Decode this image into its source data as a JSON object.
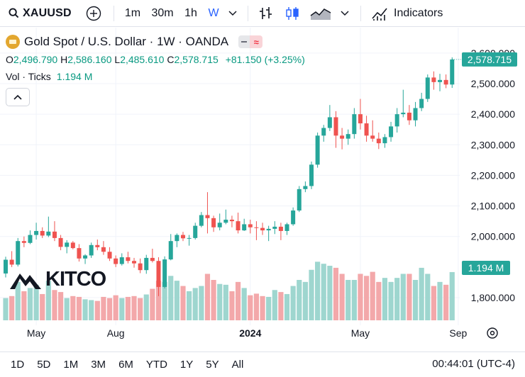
{
  "toolbar": {
    "symbol": "XAUUSD",
    "intervals": [
      "1m",
      "30m",
      "1h",
      "W"
    ],
    "active_interval": "W",
    "indicators_label": "Indicators",
    "icons": [
      "search-icon",
      "add-compare-icon",
      "chevron-down-icon",
      "bar-style-icon",
      "candle-style-icon",
      "area-style-icon",
      "indicators-icon"
    ]
  },
  "legend": {
    "title": "Gold Spot / U.S. Dollar · 1W · OANDA",
    "o_label": "O",
    "open": "2,496.790",
    "h_label": "H",
    "high": "2,586.160",
    "l_label": "L",
    "low": "2,485.610",
    "c_label": "C",
    "close": "2,578.715",
    "change": "+81.150 (+3.25%)",
    "vol_label": "Vol · Ticks",
    "vol_value": "1.194 M"
  },
  "watermark": "KITCO",
  "bottom": {
    "ranges": [
      "1D",
      "5D",
      "1M",
      "3M",
      "6M",
      "YTD",
      "1Y",
      "5Y",
      "All"
    ],
    "clock": "00:44:01 (UTC-4)"
  },
  "colors": {
    "up": "#26a69a",
    "down": "#ef5350",
    "vol_up": "#9ed6cf",
    "vol_down": "#f3a8aa",
    "badge": "#26a69a",
    "accent": "#2962ff"
  },
  "chart_data": {
    "type": "candlestick",
    "title": "Gold Spot / U.S. Dollar · 1W · OANDA",
    "y_ticks": [
      "2,600.000",
      "2,500.000",
      "2,400.000",
      "2,300.000",
      "2,200.000",
      "2,100.000",
      "2,000.000",
      "1,800.000"
    ],
    "y_tick_values": [
      2600,
      2500,
      2400,
      2300,
      2200,
      2100,
      2000,
      1800
    ],
    "ylim": [
      1755,
      2620
    ],
    "x_ticks": [
      {
        "label": "May",
        "index": 5
      },
      {
        "label": "Aug",
        "index": 18
      },
      {
        "label": "2024",
        "index": 40
      },
      {
        "label": "May",
        "index": 58
      },
      {
        "label": "Sep",
        "index": 74
      }
    ],
    "last_price_label": "2,578.715",
    "volume_label": "1.194 M",
    "volume_range": [
      0,
      1.7
    ],
    "candles": [
      [
        1879,
        1934,
        1866,
        1924,
        0.55
      ],
      [
        1924,
        1952,
        1900,
        1908,
        0.6
      ],
      [
        1908,
        1995,
        1902,
        1985,
        0.95
      ],
      [
        1985,
        2000,
        1965,
        1979,
        0.72
      ],
      [
        1979,
        2020,
        1975,
        2005,
        0.8
      ],
      [
        2005,
        2045,
        1990,
        2018,
        0.88
      ],
      [
        2018,
        2030,
        1995,
        2003,
        0.65
      ],
      [
        2003,
        2065,
        1998,
        2016,
        0.98
      ],
      [
        2016,
        2050,
        1985,
        1995,
        0.75
      ],
      [
        1995,
        2005,
        1955,
        1966,
        0.7
      ],
      [
        1966,
        1988,
        1945,
        1980,
        0.55
      ],
      [
        1980,
        1985,
        1958,
        1962,
        0.6
      ],
      [
        1962,
        1975,
        1918,
        1928,
        0.58
      ],
      [
        1928,
        1942,
        1910,
        1938,
        0.52
      ],
      [
        1938,
        1980,
        1930,
        1972,
        0.5
      ],
      [
        1972,
        1990,
        1955,
        1965,
        0.48
      ],
      [
        1965,
        1985,
        1940,
        1950,
        0.58
      ],
      [
        1950,
        1965,
        1920,
        1928,
        0.55
      ],
      [
        1928,
        1938,
        1900,
        1910,
        0.62
      ],
      [
        1910,
        1945,
        1905,
        1932,
        0.55
      ],
      [
        1932,
        1950,
        1912,
        1920,
        0.58
      ],
      [
        1920,
        1930,
        1898,
        1912,
        0.6
      ],
      [
        1912,
        1928,
        1880,
        1890,
        0.55
      ],
      [
        1890,
        1940,
        1878,
        1930,
        0.64
      ],
      [
        1930,
        1960,
        1915,
        1920,
        0.78
      ],
      [
        1920,
        1932,
        1805,
        1835,
        0.98
      ],
      [
        1835,
        1935,
        1830,
        1925,
        0.95
      ],
      [
        1925,
        2008,
        1922,
        1985,
        1.1
      ],
      [
        1985,
        2010,
        1965,
        2005,
        0.98
      ],
      [
        2005,
        2015,
        1985,
        1994,
        0.85
      ],
      [
        1994,
        2005,
        1970,
        1995,
        0.72
      ],
      [
        1995,
        2045,
        1990,
        2035,
        0.8
      ],
      [
        2035,
        2080,
        2030,
        2070,
        0.85
      ],
      [
        2070,
        2145,
        2010,
        2060,
        1.15
      ],
      [
        2060,
        2068,
        2015,
        2030,
        1.0
      ],
      [
        2030,
        2075,
        2020,
        2045,
        0.9
      ],
      [
        2045,
        2088,
        2040,
        2055,
        0.88
      ],
      [
        2055,
        2068,
        2030,
        2050,
        0.72
      ],
      [
        2050,
        2078,
        2010,
        2020,
        0.95
      ],
      [
        2020,
        2058,
        2018,
        2040,
        0.8
      ],
      [
        2040,
        2055,
        2010,
        2030,
        0.62
      ],
      [
        2030,
        2050,
        1988,
        2028,
        0.66
      ],
      [
        2028,
        2045,
        2005,
        2020,
        0.6
      ],
      [
        2020,
        2035,
        1985,
        2025,
        0.58
      ],
      [
        2025,
        2050,
        2008,
        2032,
        0.75
      ],
      [
        2032,
        2045,
        1988,
        2018,
        0.7
      ],
      [
        2018,
        2045,
        2005,
        2040,
        0.65
      ],
      [
        2040,
        2095,
        2035,
        2085,
        0.85
      ],
      [
        2085,
        2165,
        2080,
        2155,
        1.0
      ],
      [
        2155,
        2180,
        2145,
        2165,
        0.95
      ],
      [
        2165,
        2245,
        2155,
        2235,
        1.25
      ],
      [
        2235,
        2340,
        2225,
        2330,
        1.45
      ],
      [
        2330,
        2365,
        2310,
        2355,
        1.4
      ],
      [
        2355,
        2430,
        2345,
        2390,
        1.35
      ],
      [
        2390,
        2410,
        2290,
        2330,
        1.3
      ],
      [
        2330,
        2355,
        2285,
        2320,
        1.15
      ],
      [
        2320,
        2350,
        2300,
        2335,
        1.0
      ],
      [
        2335,
        2420,
        2320,
        2400,
        1.0
      ],
      [
        2400,
        2450,
        2350,
        2370,
        1.15
      ],
      [
        2370,
        2395,
        2310,
        2330,
        1.1
      ],
      [
        2330,
        2380,
        2310,
        2320,
        1.2
      ],
      [
        2320,
        2340,
        2286,
        2305,
        0.95
      ],
      [
        2305,
        2335,
        2290,
        2325,
        1.05
      ],
      [
        2325,
        2375,
        2310,
        2360,
        0.95
      ],
      [
        2360,
        2420,
        2340,
        2400,
        1.05
      ],
      [
        2400,
        2480,
        2390,
        2405,
        1.15
      ],
      [
        2405,
        2430,
        2365,
        2380,
        1.15
      ],
      [
        2380,
        2440,
        2360,
        2420,
        1.0
      ],
      [
        2420,
        2470,
        2410,
        2450,
        1.3
      ],
      [
        2450,
        2530,
        2440,
        2520,
        1.15
      ],
      [
        2520,
        2540,
        2480,
        2505,
        0.85
      ],
      [
        2505,
        2532,
        2475,
        2512,
        0.95
      ],
      [
        2512,
        2530,
        2485,
        2497,
        0.88
      ],
      [
        2497,
        2586,
        2486,
        2579,
        1.194
      ]
    ]
  }
}
